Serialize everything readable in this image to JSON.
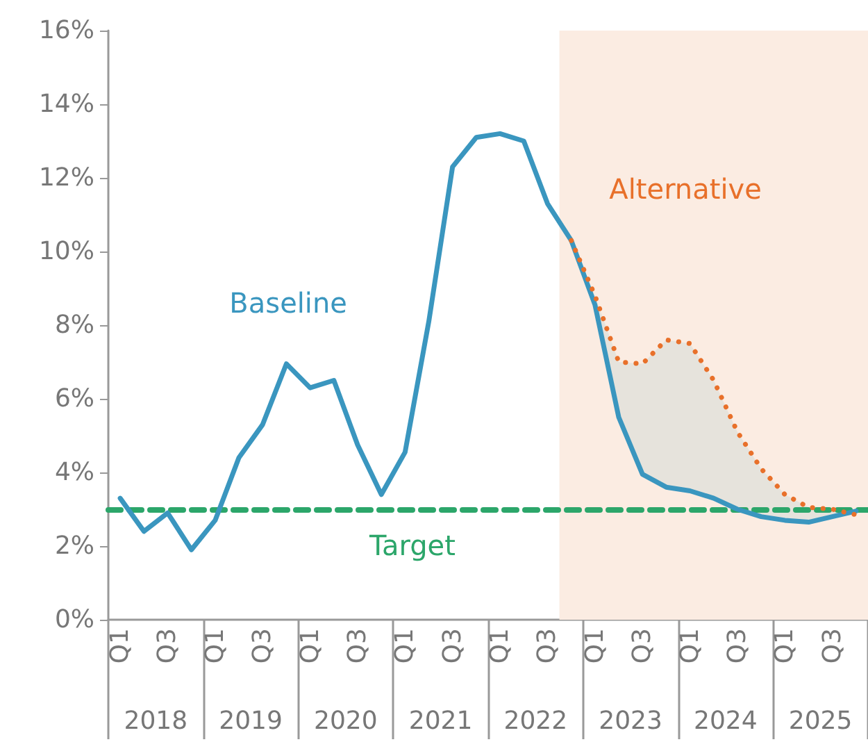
{
  "chart_data": {
    "type": "line",
    "categories": [
      "Q1",
      null,
      "Q3",
      null,
      "Q1",
      null,
      "Q3",
      null,
      "Q1",
      null,
      "Q3",
      null,
      "Q1",
      null,
      "Q3",
      null,
      "Q1",
      null,
      "Q3",
      null,
      "Q1",
      null,
      "Q3",
      null,
      "Q1",
      null,
      "Q3",
      null,
      "Q1",
      null,
      "Q3",
      null
    ],
    "series": [
      {
        "name": "Baseline",
        "color": "#3a96bf",
        "line_style": "solid",
        "values": [
          3.3,
          2.4,
          2.9,
          1.9,
          2.7,
          4.4,
          5.3,
          6.95,
          6.3,
          6.5,
          4.75,
          3.4,
          4.55,
          8.1,
          12.3,
          13.1,
          13.2,
          13.0,
          11.3,
          10.3,
          8.55,
          5.5,
          3.95,
          3.6,
          3.5,
          3.3,
          3.0,
          2.8,
          2.7,
          2.65,
          2.8,
          2.95
        ]
      },
      {
        "name": "Alternative",
        "color": "#e8702a",
        "line_style": "dotted",
        "values": [
          null,
          null,
          null,
          null,
          null,
          null,
          null,
          null,
          null,
          null,
          null,
          null,
          null,
          null,
          null,
          null,
          null,
          null,
          null,
          10.3,
          8.8,
          7.0,
          6.95,
          7.6,
          7.5,
          6.5,
          5.1,
          4.1,
          3.4,
          3.05,
          3.0,
          2.85
        ],
        "lower": [
          null,
          null,
          null,
          null,
          null,
          null,
          null,
          null,
          null,
          null,
          null,
          null,
          null,
          null,
          null,
          null,
          null,
          null,
          null,
          10.3,
          8.55,
          5.5,
          3.95,
          3.6,
          3.5,
          3.3,
          3.0,
          2.8,
          2.7,
          2.65,
          2.8,
          2.85
        ],
        "upper": [
          null,
          null,
          null,
          null,
          null,
          null,
          null,
          null,
          null,
          null,
          null,
          null,
          null,
          null,
          null,
          null,
          null,
          null,
          null,
          10.3,
          8.8,
          7.0,
          6.95,
          7.6,
          7.5,
          6.5,
          5.1,
          4.1,
          3.4,
          3.05,
          3.0,
          2.95
        ]
      }
    ],
    "ylim": [
      0,
      16
    ],
    "yticks": [
      {
        "value": 0,
        "label": "0%"
      },
      {
        "value": 2,
        "label": "2%"
      },
      {
        "value": 4,
        "label": "4%"
      },
      {
        "value": 6,
        "label": "6%"
      },
      {
        "value": 8,
        "label": "8%"
      },
      {
        "value": 10,
        "label": "10%"
      },
      {
        "value": 12,
        "label": "12%"
      },
      {
        "value": 14,
        "label": "14%"
      },
      {
        "value": 16,
        "label": "16%"
      }
    ],
    "ref_lines": [
      {
        "axis": "y",
        "value": 3,
        "label": "Target",
        "color": "#2ca66a",
        "line_style": "dashed"
      }
    ],
    "annotations": [
      "2018",
      "2019",
      "2020",
      "2021",
      "2022",
      "2023",
      "2024",
      "2025"
    ],
    "grid": false,
    "legend": false,
    "marker": "none"
  }
}
